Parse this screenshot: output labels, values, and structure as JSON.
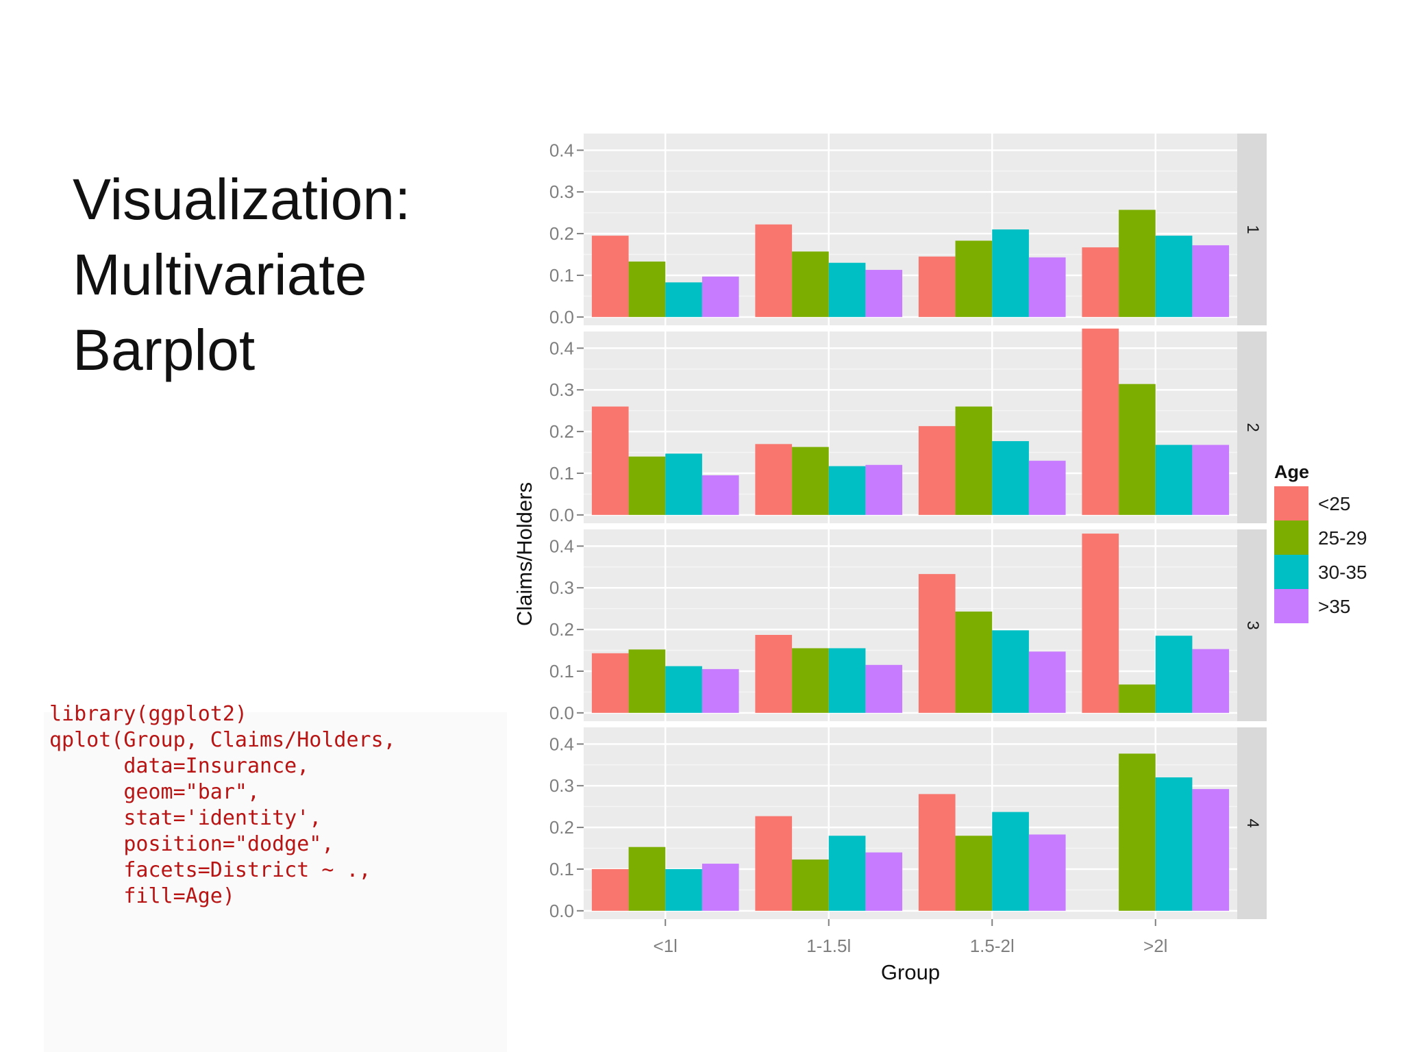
{
  "slide": {
    "title_lines": [
      "Visualization:",
      "Multivariate",
      "Barplot"
    ],
    "code_lines": [
      "library(ggplot2)",
      "qplot(Group, Claims/Holders,",
      "      data=Insurance,",
      "      geom=\"bar\",",
      "      stat='identity',",
      "      position=\"dodge\",",
      "      facets=District ~ .,",
      "      fill=Age)"
    ]
  },
  "chart_data": {
    "type": "bar",
    "xlabel": "Group",
    "ylabel": "Claims/Holders",
    "categories": [
      "<1l",
      "1-1.5l",
      "1.5-2l",
      ">2l"
    ],
    "ylim": [
      -0.02,
      0.44
    ],
    "yticks": [
      0.0,
      0.1,
      0.2,
      0.3,
      0.4
    ],
    "ytick_labels": [
      "0.0",
      "0.1",
      "0.2",
      "0.3",
      "0.4"
    ],
    "grid": true,
    "legend": {
      "title": "Age",
      "position": "right"
    },
    "series_names": [
      "<25",
      "25-29",
      "30-35",
      ">35"
    ],
    "series_colors": [
      "#F8766D",
      "#7CAE00",
      "#00BFC4",
      "#C77CFF"
    ],
    "panel_background": "#EBEBEB",
    "strip_background": "#D9D9D9",
    "facets": [
      {
        "label": "1",
        "series": [
          {
            "name": "<25",
            "values": [
              0.195,
              0.222,
              0.145,
              0.167
            ]
          },
          {
            "name": "25-29",
            "values": [
              0.133,
              0.157,
              0.183,
              0.257
            ]
          },
          {
            "name": "30-35",
            "values": [
              0.083,
              0.13,
              0.21,
              0.195
            ]
          },
          {
            "name": ">35",
            "values": [
              0.097,
              0.113,
              0.143,
              0.172
            ]
          }
        ]
      },
      {
        "label": "2",
        "series": [
          {
            "name": "<25",
            "values": [
              0.26,
              0.17,
              0.213,
              0.447
            ]
          },
          {
            "name": "25-29",
            "values": [
              0.14,
              0.163,
              0.26,
              0.314
            ]
          },
          {
            "name": "30-35",
            "values": [
              0.147,
              0.117,
              0.177,
              0.168
            ]
          },
          {
            "name": ">35",
            "values": [
              0.095,
              0.12,
              0.13,
              0.168
            ]
          }
        ]
      },
      {
        "label": "3",
        "series": [
          {
            "name": "<25",
            "values": [
              0.143,
              0.187,
              0.333,
              0.43
            ]
          },
          {
            "name": "25-29",
            "values": [
              0.152,
              0.155,
              0.243,
              0.068
            ]
          },
          {
            "name": "30-35",
            "values": [
              0.112,
              0.155,
              0.198,
              0.185
            ]
          },
          {
            "name": ">35",
            "values": [
              0.105,
              0.115,
              0.147,
              0.153
            ]
          }
        ]
      },
      {
        "label": "4",
        "series": [
          {
            "name": "<25",
            "values": [
              0.1,
              0.227,
              0.28,
              0.0
            ]
          },
          {
            "name": "25-29",
            "values": [
              0.153,
              0.123,
              0.18,
              0.377
            ]
          },
          {
            "name": "30-35",
            "values": [
              0.1,
              0.18,
              0.237,
              0.32
            ]
          },
          {
            "name": ">35",
            "values": [
              0.113,
              0.14,
              0.183,
              0.292
            ]
          }
        ]
      }
    ]
  }
}
